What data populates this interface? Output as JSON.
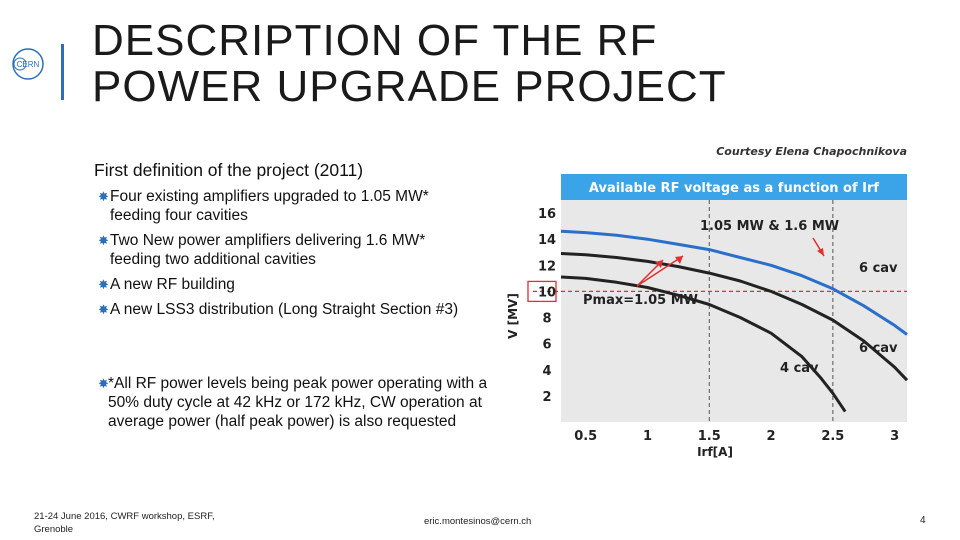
{
  "slide": {
    "title": "DESCRIPTION OF THE RF POWER UPGRADE PROJECT",
    "logo_text": "CERN",
    "intro": "First definition of the project (2011)",
    "bullets": [
      "Four existing amplifiers upgraded to 1.05 MW* feeding four cavities",
      "Two New power amplifiers delivering 1.6 MW* feeding two additional cavities",
      "A new RF building",
      "A new LSS3 distribution (Long Straight Section #3)"
    ],
    "note": "*All RF power levels being peak power operating with a 50% duty cycle at 42 kHz or 172 kHz, CW operation at average power (half peak power) is also requested",
    "footer": {
      "left": "21-24 June 2016, CWRF workshop, ESRF, Grenoble",
      "middle": "eric.montesinos@cern.ch",
      "page": "4"
    }
  },
  "colors": {
    "accent": "#2c6fb8",
    "chart_banner": "#3ba3e8",
    "chart_bg": "#e8e8e8",
    "highlight": "#e03030"
  },
  "chart_data": {
    "type": "line",
    "credit": "Courtesy Elena Chapochnikova",
    "title": "Available RF voltage as a function of Irf",
    "xlabel": "Irf[A]",
    "ylabel": "V [MV]",
    "xlim": [
      0.3,
      3.1
    ],
    "ylim": [
      0,
      17
    ],
    "xticks": [
      0.5,
      1,
      1.5,
      2,
      2.5,
      3
    ],
    "xtick_labels": [
      "0.5",
      "1",
      "1.5",
      "2",
      "2.5",
      "3"
    ],
    "yticks": [
      2,
      4,
      6,
      8,
      10,
      12,
      14,
      16
    ],
    "ytick_labels": [
      "2",
      "4",
      "6",
      "8",
      "10",
      "12",
      "14",
      "16"
    ],
    "highlighted_ytick": "10",
    "reference_lines": {
      "x": [
        1.5,
        2.5
      ],
      "y": [
        10
      ]
    },
    "series": [
      {
        "name": "6 cav, 1.6 MW",
        "color": "#2a6fc9",
        "x": [
          0.3,
          0.5,
          0.75,
          1.0,
          1.25,
          1.5,
          1.75,
          2.0,
          2.25,
          2.5,
          2.75,
          3.0,
          3.1
        ],
        "y": [
          14.6,
          14.5,
          14.3,
          14.0,
          13.6,
          13.2,
          12.6,
          12.0,
          11.2,
          10.2,
          8.9,
          7.4,
          6.7
        ]
      },
      {
        "name": "6 cav, 1.05 MW",
        "color": "#222222",
        "x": [
          0.3,
          0.5,
          0.75,
          1.0,
          1.25,
          1.5,
          1.75,
          2.0,
          2.25,
          2.5,
          2.75,
          3.0,
          3.1
        ],
        "y": [
          12.9,
          12.8,
          12.6,
          12.3,
          11.9,
          11.4,
          10.8,
          10.0,
          9.0,
          7.8,
          6.2,
          4.2,
          3.2
        ]
      },
      {
        "name": "4 cav, 1.05 MW",
        "color": "#222222",
        "x": [
          0.3,
          0.5,
          0.75,
          1.0,
          1.25,
          1.5,
          1.75,
          2.0,
          2.25,
          2.4,
          2.5,
          2.6
        ],
        "y": [
          11.1,
          11.0,
          10.7,
          10.3,
          9.7,
          9.0,
          8.0,
          6.8,
          5.0,
          3.4,
          2.2,
          0.8
        ]
      }
    ],
    "annotations": [
      {
        "text": "1.05 MW & 1.6 MW"
      },
      {
        "text": "Pmax=1.05 MW"
      },
      {
        "text": "6 cav"
      },
      {
        "text": "6 cav"
      },
      {
        "text": "4 cav"
      }
    ]
  }
}
